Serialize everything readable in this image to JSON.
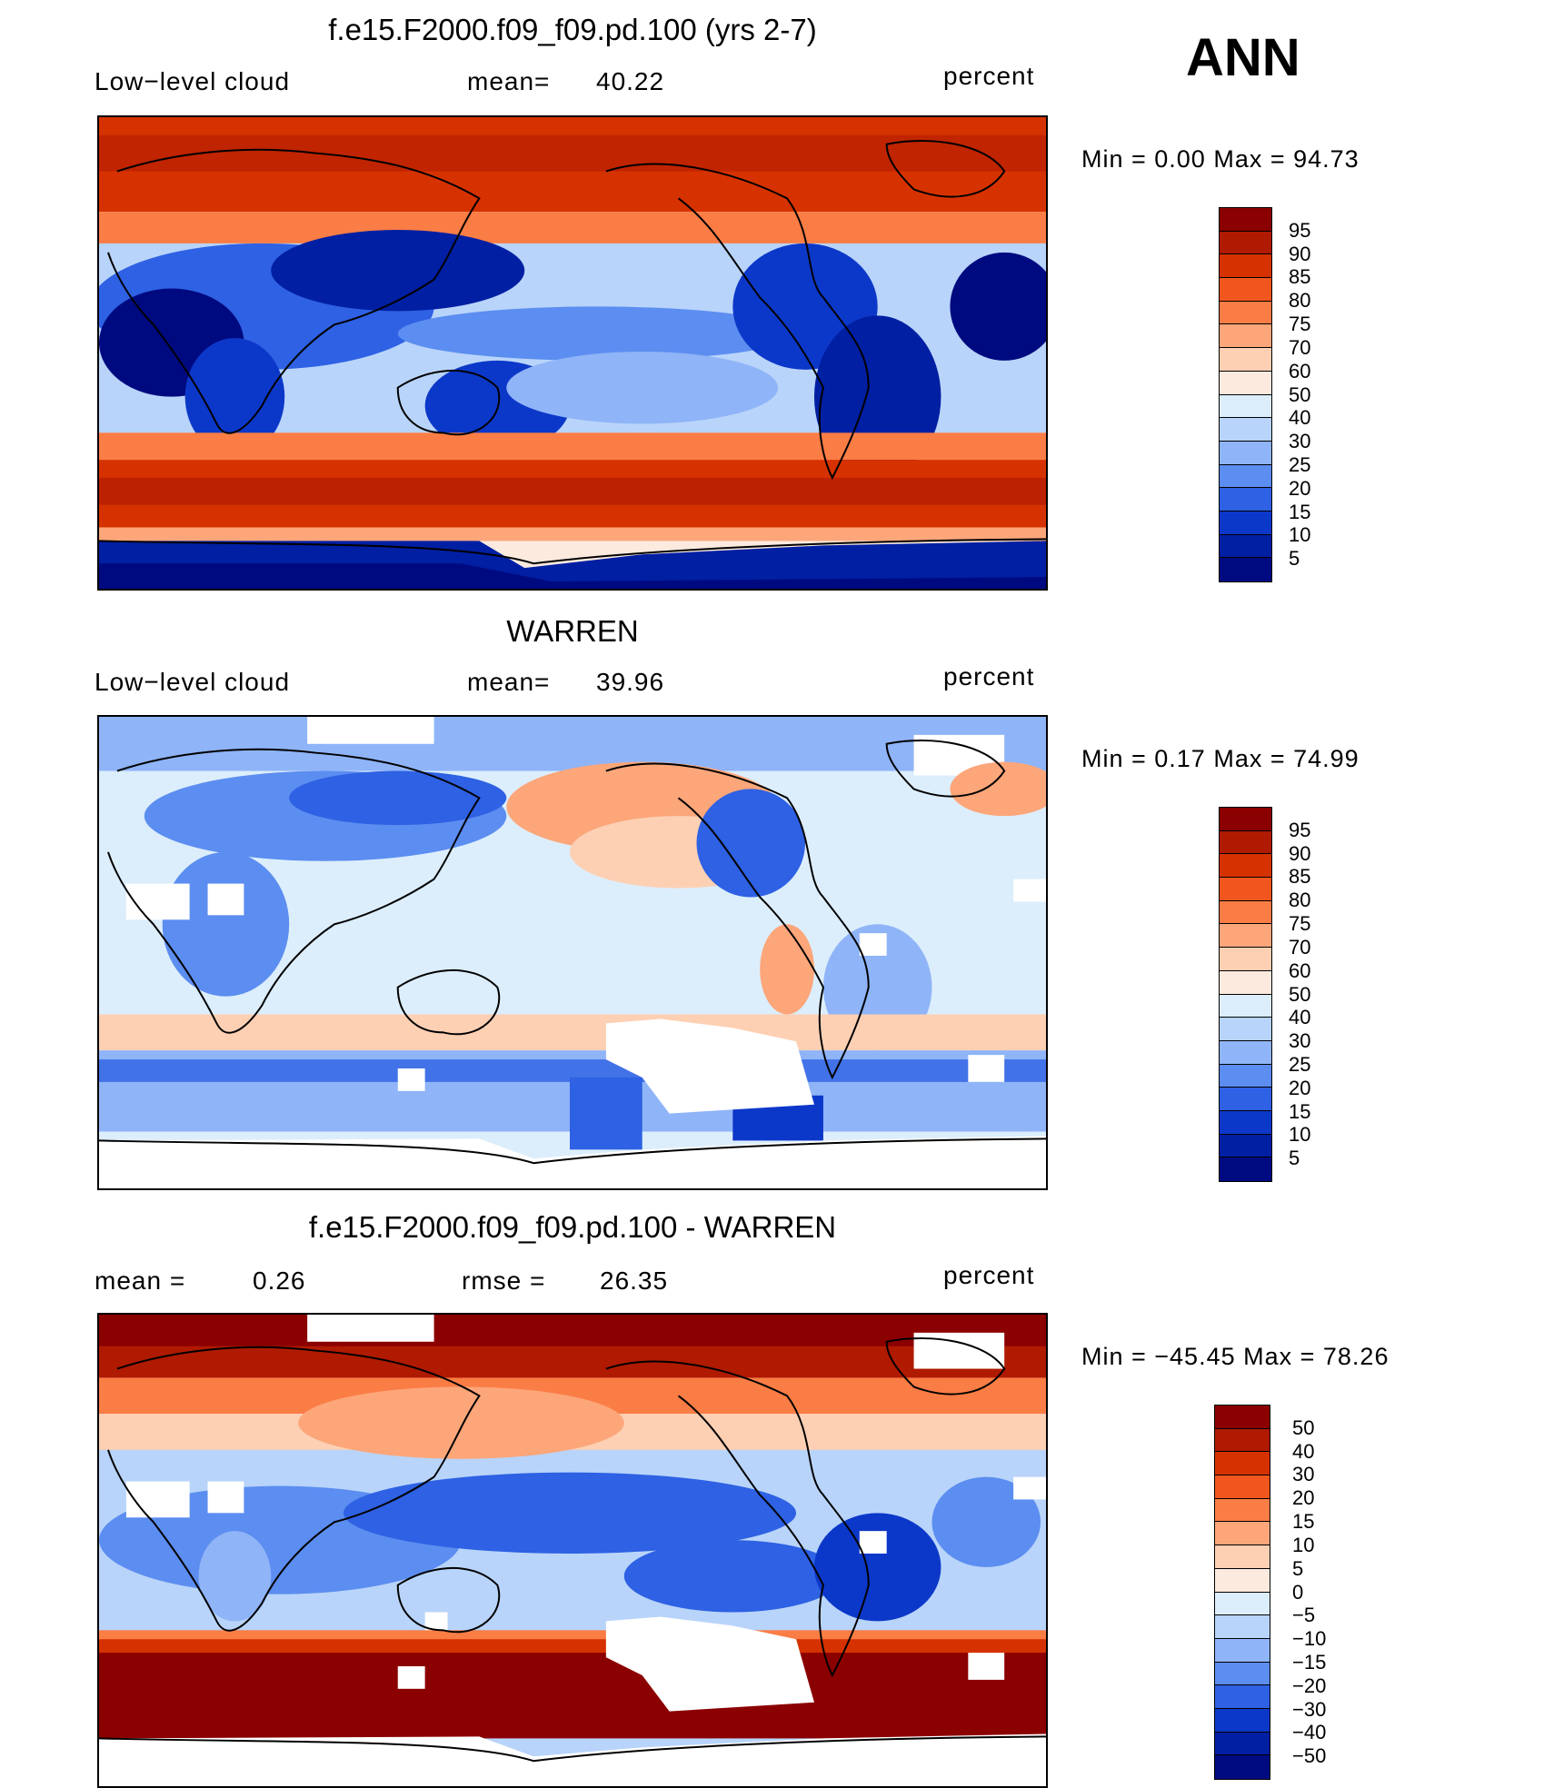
{
  "season": "ANN",
  "panels": [
    {
      "title": "f.e15.F2000.f09_f09.pd.100 (yrs 2-7)",
      "left_label": "Low−level cloud",
      "stat_label": "mean=",
      "stat_value": "40.22",
      "units": "percent",
      "minmax": "Min =    0.00  Max =    94.73",
      "colorbar_labels": [
        "95",
        "90",
        "85",
        "80",
        "75",
        "70",
        "60",
        "50",
        "40",
        "30",
        "25",
        "20",
        "15",
        "10",
        "5"
      ]
    },
    {
      "title": "WARREN",
      "left_label": "Low−level cloud",
      "stat_label": "mean=",
      "stat_value": "39.96",
      "units": "percent",
      "minmax": "Min =    0.17  Max =    74.99",
      "colorbar_labels": [
        "95",
        "90",
        "85",
        "80",
        "75",
        "70",
        "60",
        "50",
        "40",
        "30",
        "25",
        "20",
        "15",
        "10",
        "5"
      ]
    },
    {
      "title": "f.e15.F2000.f09_f09.pd.100 - WARREN",
      "left_label": "mean =",
      "left_value": "0.26",
      "stat_label": "rmse =",
      "stat_value": "26.35",
      "units": "percent",
      "minmax": "Min = −45.45  Max =    78.26",
      "colorbar_labels": [
        "50",
        "40",
        "30",
        "20",
        "15",
        "10",
        "5",
        "0",
        "−5",
        "−10",
        "−15",
        "−20",
        "−30",
        "−40",
        "−50"
      ]
    }
  ],
  "colors": {
    "field_scale": [
      "#8b0000",
      "#b01a00",
      "#d63200",
      "#f0561e",
      "#fa7d45",
      "#fca67a",
      "#fdd0b4",
      "#fdeadf",
      "#dceefc",
      "#b8d4fa",
      "#8fb4f7",
      "#5c8df0",
      "#2e61e3",
      "#0c38c9",
      "#001fa3",
      "#000a80"
    ],
    "diff_scale": [
      "#8b0000",
      "#b01a00",
      "#d63200",
      "#f0561e",
      "#fa7d45",
      "#fca67a",
      "#fdd0b4",
      "#fdeadf",
      "#dceefc",
      "#b8d4fa",
      "#8fb4f7",
      "#5c8df0",
      "#2e61e3",
      "#0c38c9",
      "#001fa3",
      "#000a80"
    ]
  }
}
